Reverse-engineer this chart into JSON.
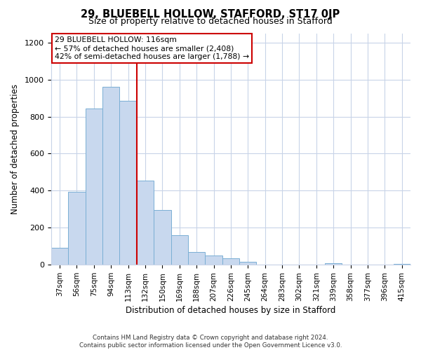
{
  "title": "29, BLUEBELL HOLLOW, STAFFORD, ST17 0JP",
  "subtitle": "Size of property relative to detached houses in Stafford",
  "xlabel": "Distribution of detached houses by size in Stafford",
  "ylabel": "Number of detached properties",
  "bar_labels": [
    "37sqm",
    "56sqm",
    "75sqm",
    "94sqm",
    "113sqm",
    "132sqm",
    "150sqm",
    "169sqm",
    "188sqm",
    "207sqm",
    "226sqm",
    "245sqm",
    "264sqm",
    "283sqm",
    "302sqm",
    "321sqm",
    "339sqm",
    "358sqm",
    "377sqm",
    "396sqm",
    "415sqm"
  ],
  "bar_values": [
    90,
    395,
    845,
    960,
    885,
    455,
    295,
    160,
    70,
    50,
    35,
    15,
    0,
    0,
    0,
    0,
    10,
    0,
    0,
    0,
    5
  ],
  "bar_color": "#c8d8ee",
  "bar_edge_color": "#7aafd4",
  "vline_x_pos": 4.5,
  "vline_color": "#cc0000",
  "annotation_line1": "29 BLUEBELL HOLLOW: 116sqm",
  "annotation_line2": "← 57% of detached houses are smaller (2,408)",
  "annotation_line3": "42% of semi-detached houses are larger (1,788) →",
  "annotation_box_color": "#ffffff",
  "annotation_box_edge_color": "#cc0000",
  "ylim": [
    0,
    1250
  ],
  "yticks": [
    0,
    200,
    400,
    600,
    800,
    1000,
    1200
  ],
  "footer_line1": "Contains HM Land Registry data © Crown copyright and database right 2024.",
  "footer_line2": "Contains public sector information licensed under the Open Government Licence v3.0.",
  "bg_color": "#ffffff",
  "grid_color": "#c8d4e8"
}
